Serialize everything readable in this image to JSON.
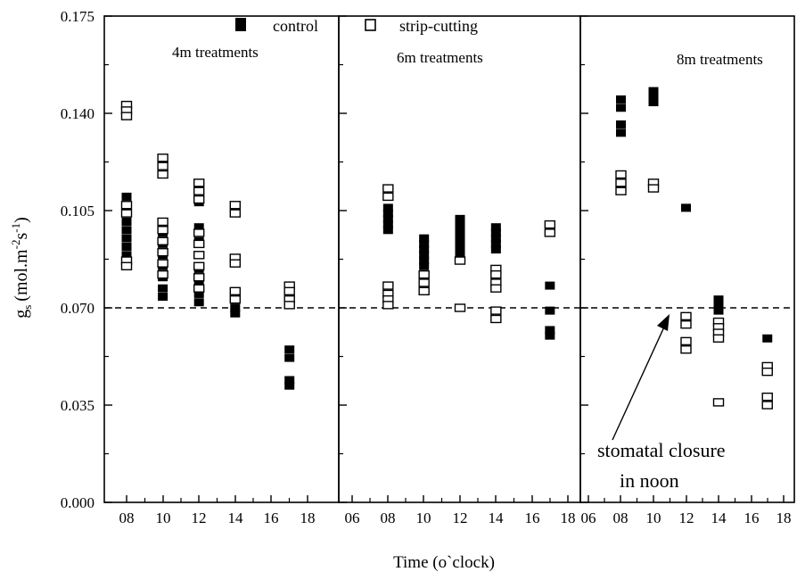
{
  "chart_data": {
    "type": "scatter",
    "xlabel": "Time (o`clock)",
    "ylabel_main": "g",
    "ylabel_sub": "s",
    "ylabel_units": "(mol.m",
    "ylabel_exp1": "-2",
    "ylabel_mid": "s",
    "ylabel_exp2": "-1",
    "ylabel_close": ")",
    "ylim": [
      0.0,
      0.175
    ],
    "yticks": [
      "0.000",
      "0.035",
      "0.070",
      "0.105",
      "0.140",
      "0.175"
    ],
    "reference_line": 0.07,
    "legend": {
      "control": "control",
      "strip": "strip-cutting",
      "placement": "top"
    },
    "annotation": {
      "line1": "stomatal closure",
      "line2": "in noon"
    },
    "panels": [
      {
        "title": "4m treatments",
        "xlim": [
          6.5,
          19
        ],
        "xticks": [
          "08",
          "10",
          "12",
          "14",
          "16",
          "18"
        ],
        "series": [
          {
            "name": "control",
            "marker": "filled",
            "points": [
              [
                8,
                0.11
              ],
              [
                8,
                0.107
              ],
              [
                8,
                0.104
              ],
              [
                8,
                0.101
              ],
              [
                8,
                0.098
              ],
              [
                8,
                0.095
              ],
              [
                8,
                0.092
              ],
              [
                8,
                0.089
              ],
              [
                8,
                0.086
              ],
              [
                10,
                0.1
              ],
              [
                10,
                0.097
              ],
              [
                10,
                0.093
              ],
              [
                10,
                0.089
              ],
              [
                10,
                0.085
              ],
              [
                10,
                0.081
              ],
              [
                10,
                0.077
              ],
              [
                10,
                0.074
              ],
              [
                12,
                0.099
              ],
              [
                12,
                0.094
              ],
              [
                12,
                0.089
              ],
              [
                12,
                0.084
              ],
              [
                12,
                0.079
              ],
              [
                12,
                0.075
              ],
              [
                12,
                0.072
              ],
              [
                12,
                0.108
              ],
              [
                14,
                0.07
              ],
              [
                14,
                0.068
              ],
              [
                17,
                0.055
              ],
              [
                17,
                0.052
              ],
              [
                17,
                0.044
              ],
              [
                17,
                0.042
              ]
            ]
          },
          {
            "name": "strip-cutting",
            "marker": "open",
            "points": [
              [
                8,
                0.143
              ],
              [
                8,
                0.141
              ],
              [
                8,
                0.139
              ],
              [
                8,
                0.107
              ],
              [
                8,
                0.104
              ],
              [
                8,
                0.087
              ],
              [
                8,
                0.085
              ],
              [
                10,
                0.124
              ],
              [
                10,
                0.121
              ],
              [
                10,
                0.118
              ],
              [
                10,
                0.101
              ],
              [
                10,
                0.098
              ],
              [
                10,
                0.094
              ],
              [
                10,
                0.09
              ],
              [
                10,
                0.086
              ],
              [
                10,
                0.082
              ],
              [
                12,
                0.115
              ],
              [
                12,
                0.112
              ],
              [
                12,
                0.109
              ],
              [
                12,
                0.097
              ],
              [
                12,
                0.093
              ],
              [
                12,
                0.089
              ],
              [
                12,
                0.085
              ],
              [
                12,
                0.081
              ],
              [
                12,
                0.077
              ],
              [
                14,
                0.107
              ],
              [
                14,
                0.104
              ],
              [
                14,
                0.088
              ],
              [
                14,
                0.086
              ],
              [
                14,
                0.076
              ],
              [
                14,
                0.073
              ],
              [
                17,
                0.078
              ],
              [
                17,
                0.076
              ],
              [
                17,
                0.073
              ],
              [
                17,
                0.071
              ]
            ]
          }
        ]
      },
      {
        "title": "6m treatments",
        "xlim": [
          6,
          19
        ],
        "xticks": [
          "06",
          "08",
          "10",
          "12",
          "14",
          "16",
          "18"
        ],
        "series": [
          {
            "name": "control",
            "marker": "filled",
            "points": [
              [
                8,
                0.106
              ],
              [
                8,
                0.104
              ],
              [
                8,
                0.102
              ],
              [
                8,
                0.1
              ],
              [
                8,
                0.098
              ],
              [
                10,
                0.095
              ],
              [
                10,
                0.093
              ],
              [
                10,
                0.091
              ],
              [
                10,
                0.089
              ],
              [
                10,
                0.087
              ],
              [
                10,
                0.085
              ],
              [
                12,
                0.102
              ],
              [
                12,
                0.1
              ],
              [
                12,
                0.098
              ],
              [
                12,
                0.096
              ],
              [
                12,
                0.094
              ],
              [
                12,
                0.092
              ],
              [
                12,
                0.09
              ],
              [
                12,
                0.088
              ],
              [
                14,
                0.099
              ],
              [
                14,
                0.097
              ],
              [
                14,
                0.095
              ],
              [
                14,
                0.093
              ],
              [
                14,
                0.091
              ],
              [
                17,
                0.078
              ],
              [
                17,
                0.069
              ],
              [
                17,
                0.062
              ],
              [
                17,
                0.06
              ]
            ]
          },
          {
            "name": "strip-cutting",
            "marker": "open",
            "points": [
              [
                8,
                0.113
              ],
              [
                8,
                0.11
              ],
              [
                8,
                0.078
              ],
              [
                8,
                0.075
              ],
              [
                8,
                0.073
              ],
              [
                8,
                0.071
              ],
              [
                10,
                0.082
              ],
              [
                10,
                0.079
              ],
              [
                10,
                0.076
              ],
              [
                12,
                0.087
              ],
              [
                12,
                0.07
              ],
              [
                14,
                0.084
              ],
              [
                14,
                0.082
              ],
              [
                14,
                0.079
              ],
              [
                14,
                0.077
              ],
              [
                14,
                0.069
              ],
              [
                14,
                0.066
              ],
              [
                17,
                0.1
              ],
              [
                17,
                0.097
              ]
            ]
          }
        ]
      },
      {
        "title": "8m treatments",
        "xlim": [
          6,
          19
        ],
        "xticks": [
          "06",
          "08",
          "10",
          "12",
          "14",
          "16",
          "18"
        ],
        "series": [
          {
            "name": "control",
            "marker": "filled",
            "points": [
              [
                8,
                0.145
              ],
              [
                8,
                0.142
              ],
              [
                8,
                0.136
              ],
              [
                8,
                0.133
              ],
              [
                10,
                0.148
              ],
              [
                10,
                0.146
              ],
              [
                10,
                0.144
              ],
              [
                12,
                0.106
              ],
              [
                14,
                0.073
              ],
              [
                14,
                0.071
              ],
              [
                14,
                0.069
              ],
              [
                17,
                0.059
              ]
            ]
          },
          {
            "name": "strip-cutting",
            "marker": "open",
            "points": [
              [
                8,
                0.118
              ],
              [
                8,
                0.115
              ],
              [
                8,
                0.112
              ],
              [
                10,
                0.115
              ],
              [
                10,
                0.113
              ],
              [
                12,
                0.067
              ],
              [
                12,
                0.064
              ],
              [
                12,
                0.058
              ],
              [
                12,
                0.055
              ],
              [
                14,
                0.065
              ],
              [
                14,
                0.063
              ],
              [
                14,
                0.061
              ],
              [
                14,
                0.059
              ],
              [
                14,
                0.036
              ],
              [
                17,
                0.049
              ],
              [
                17,
                0.047
              ],
              [
                17,
                0.038
              ],
              [
                17,
                0.035
              ]
            ]
          }
        ]
      }
    ]
  }
}
